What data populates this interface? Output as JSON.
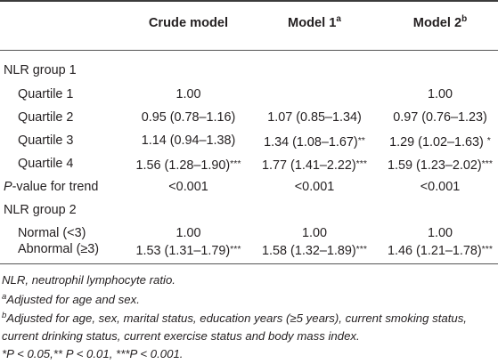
{
  "header": {
    "col1": "Crude model",
    "col2": "Model 1",
    "col2_sup": "a",
    "col3": "Model 2",
    "col3_sup": "b"
  },
  "rows": [
    {
      "label": "NLR group 1",
      "indent": false,
      "c1": "",
      "c1s": "",
      "c2": "",
      "c2s": "",
      "c3": "",
      "c3s": ""
    },
    {
      "label": "Quartile 1",
      "indent": true,
      "c1": "1.00",
      "c1s": "",
      "c2": "",
      "c2s": "",
      "c3": "1.00",
      "c3s": ""
    },
    {
      "label": "Quartile 2",
      "indent": true,
      "c1": "0.95 (0.78–1.16)",
      "c1s": "",
      "c2": "1.07 (0.85–1.34)",
      "c2s": "",
      "c3": "0.97 (0.76–1.23)",
      "c3s": ""
    },
    {
      "label": "Quartile 3",
      "indent": true,
      "c1": "1.14 (0.94–1.38)",
      "c1s": "",
      "c2": "1.34 (1.08–1.67)",
      "c2s": "**",
      "c3": "1.29 (1.02–1.63) ",
      "c3s": "*"
    },
    {
      "label": "Quartile 4",
      "indent": true,
      "c1": "1.56 (1.28–1.90)",
      "c1s": "***",
      "c2": "1.77 (1.41–2.22)",
      "c2s": "***",
      "c3": "1.59 (1.23–2.02)",
      "c3s": "***"
    },
    {
      "label_italic": "P",
      "label": "-value for trend",
      "indent": false,
      "c1": "<0.001",
      "c1s": "",
      "c2": "<0.001",
      "c2s": "",
      "c3": "<0.001",
      "c3s": ""
    },
    {
      "label": "NLR group 2",
      "indent": false,
      "c1": "",
      "c1s": "",
      "c2": "",
      "c2s": "",
      "c3": "",
      "c3s": ""
    },
    {
      "label": "Normal (<3)",
      "indent": true,
      "c1": "1.00",
      "c1s": "",
      "c2": "1.00",
      "c2s": "",
      "c3": "1.00",
      "c3s": ""
    },
    {
      "label": "Abnormal (≥3)",
      "indent": true,
      "c1": "1.53 (1.31–1.79)",
      "c1s": "***",
      "c2": "1.58 (1.32–1.89)",
      "c2s": "***",
      "c3": "1.46 (1.21–1.78)",
      "c3s": "***"
    }
  ],
  "footnotes": {
    "abbrev": "NLR, neutrophil lymphocyte ratio.",
    "a_mark": "a",
    "a_text": "Adjusted for age and sex.",
    "b_mark": "b",
    "b_line1": "Adjusted for age, sex, marital status, education years (≥5 years), current smoking status,",
    "b_line2": "current drinking status, current exercise status and body mass index.",
    "sig": "*P < 0.05,** P < 0.01, ***P < 0.001."
  }
}
